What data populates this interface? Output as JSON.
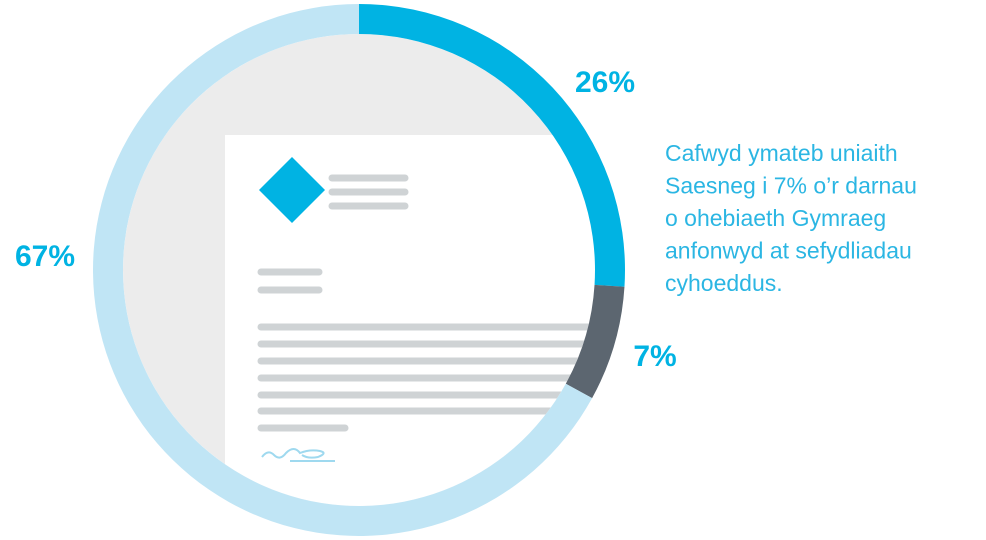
{
  "chart_data": {
    "type": "pie",
    "values": [
      26,
      7,
      67
    ],
    "value_labels": [
      "26%",
      "7%",
      "67%"
    ],
    "colors": [
      "#00b3e3",
      "#5c6670",
      "#c0e5f5"
    ],
    "annotation": [
      "Cafwyd ymateb uniaith",
      "Saesneg i 7% o’r darnau",
      "o ohebiaeth Gymraeg",
      "anfonwyd at sefydliadau",
      "cyhoeddus."
    ]
  }
}
